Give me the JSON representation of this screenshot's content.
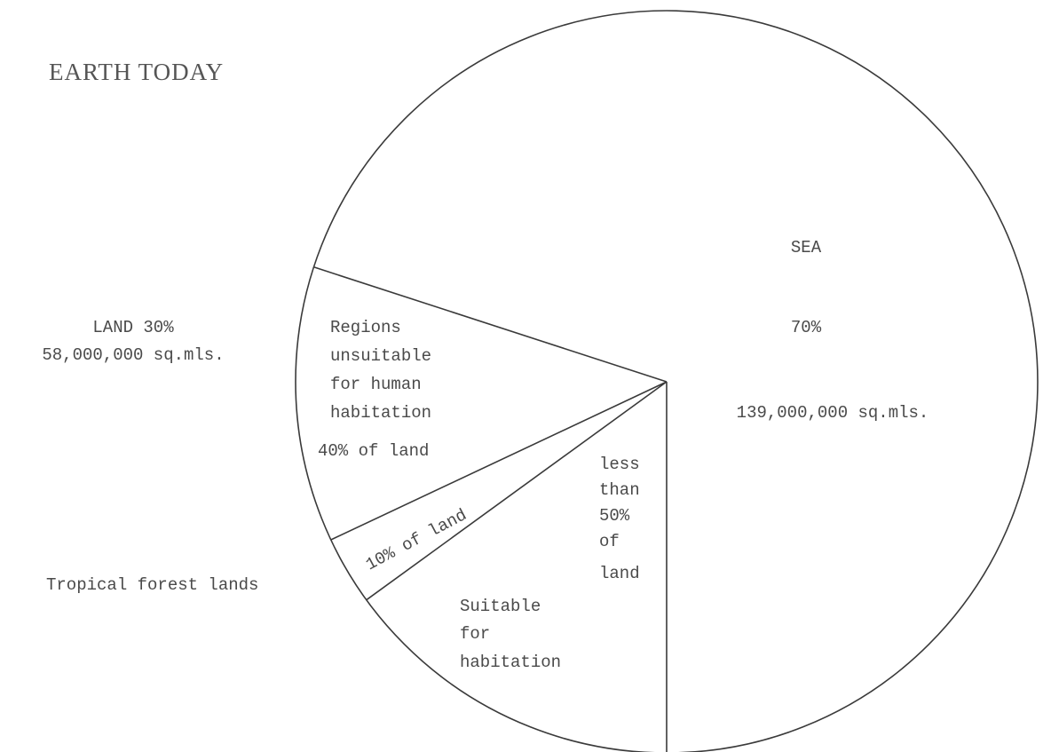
{
  "chart_data": {
    "type": "pie",
    "title": "EARTH TODAY",
    "land": {
      "label": "LAND 30%",
      "area": "58,000,000 sq.mls.",
      "value": 30
    },
    "sea": {
      "label": "SEA",
      "percent": "70%",
      "area": "139,000,000 sq.mls.",
      "value": 70
    },
    "land_breakdown": [
      {
        "label_lines": [
          "Regions",
          "unsuitable",
          "for human",
          "habitation"
        ],
        "share": "40% of land",
        "value": 40
      },
      {
        "label": "Tropical forest lands",
        "share": "10% of land",
        "value": 10
      },
      {
        "label_lines": [
          "Suitable",
          "for",
          "habitation"
        ],
        "share_lines": [
          "less",
          "than",
          "50%",
          "of",
          "land"
        ],
        "value": 50
      }
    ]
  }
}
